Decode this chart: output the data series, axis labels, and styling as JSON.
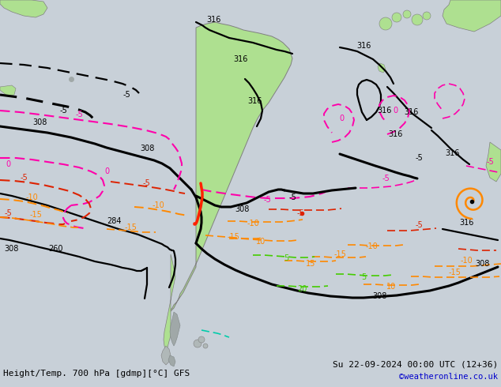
{
  "title_left": "Height/Temp. 700 hPa [gdmp][°C] GFS",
  "title_right": "Su 22-09-2024 00:00 UTC (12+36)",
  "credit": "©weatheronline.co.uk",
  "bg_color": "#c8d0d8",
  "land_color": "#aee090",
  "land_edge": "#808080",
  "text_color": "#000000",
  "credit_color": "#0000cc",
  "fig_width": 6.34,
  "fig_height": 4.9,
  "dpi": 100,
  "black_lw": 1.6,
  "thick_lw": 2.2,
  "temp_lw": 1.2,
  "pink_color": "#ff00aa",
  "red_color": "#dd2200",
  "orange_color": "#ff8800",
  "green_color": "#44cc00",
  "teal_color": "#00ccaa"
}
